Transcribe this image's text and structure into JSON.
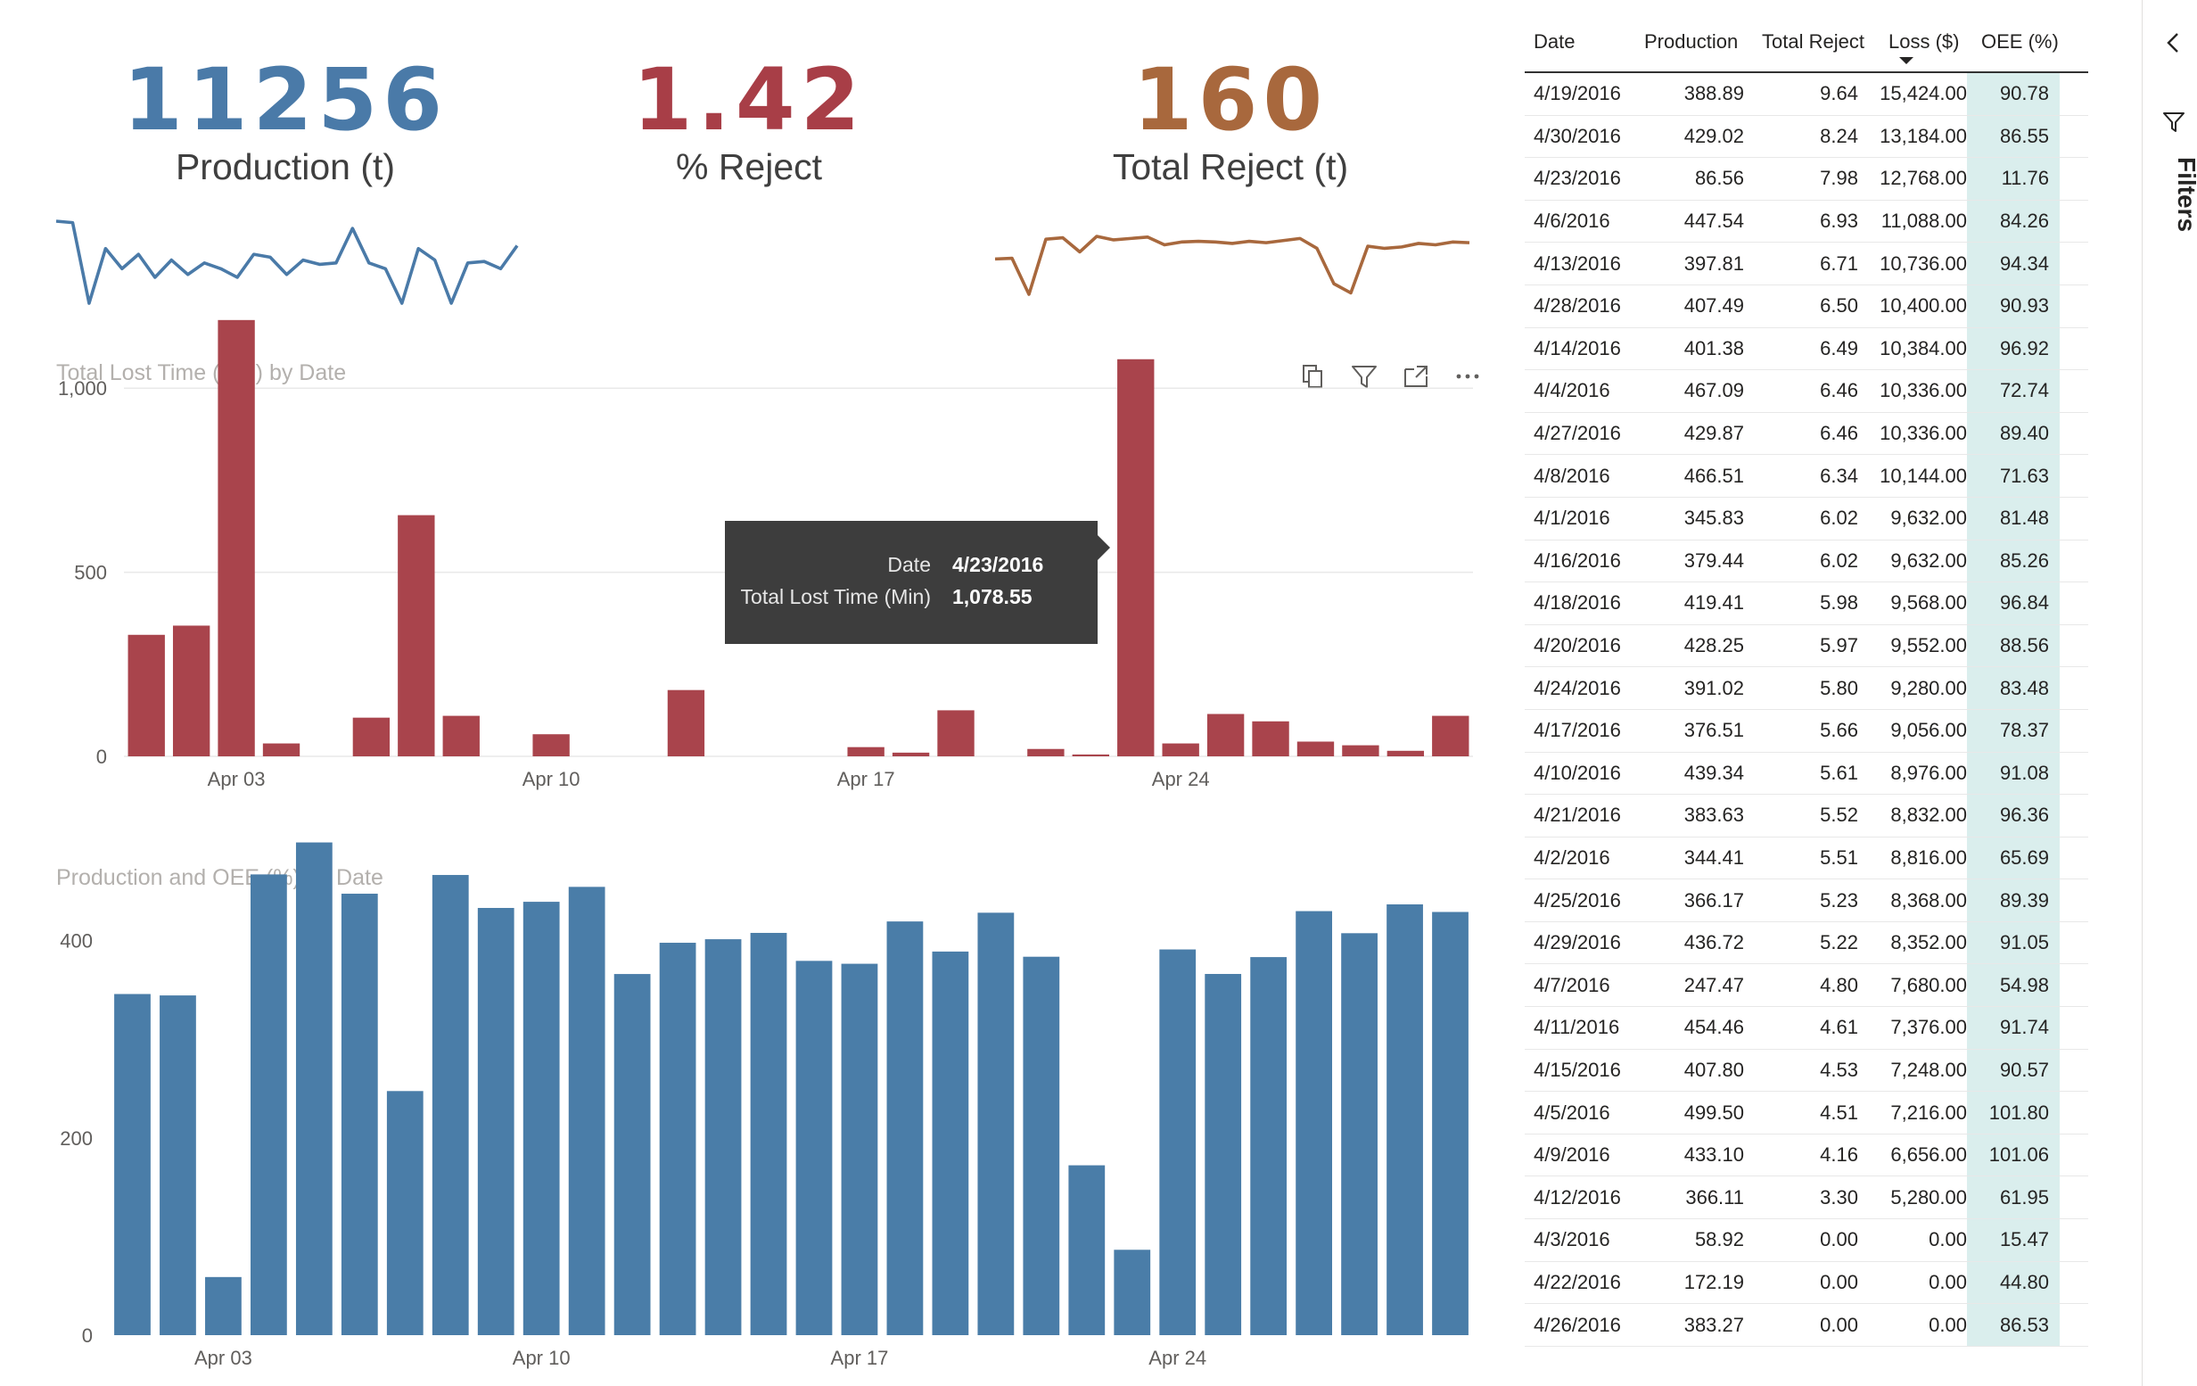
{
  "kpis": {
    "production": {
      "value": "11256",
      "label": "Production (t)"
    },
    "reject_pct": {
      "value": "1.42",
      "label": "% Reject"
    },
    "total_reject": {
      "value": "160",
      "label": "Total Reject (t)"
    }
  },
  "colors": {
    "production": "#4a7aa8",
    "reject": "#a83e47",
    "total_reject": "#a8683d",
    "lost_bar": "#a9444c",
    "prod_bar": "#4a7da8",
    "oee_cell": "#daeeed"
  },
  "visual_header_icons": [
    "copy-icon",
    "filter-icon",
    "focus-mode-icon",
    "more-options-icon"
  ],
  "tooltip": {
    "date_label": "Date",
    "date_value": "4/23/2016",
    "metric_label": "Total Lost Time (Min)",
    "metric_value": "1,078.55"
  },
  "filters_pane": {
    "label": "Filters"
  },
  "chart_data": [
    {
      "id": "production-sparkline",
      "type": "line",
      "title": "",
      "values": [
        345,
        340,
        60,
        250,
        180,
        230,
        150,
        210,
        160,
        200,
        180,
        150,
        230,
        220,
        160,
        210,
        195,
        200,
        320,
        200,
        180,
        60,
        250,
        210,
        60,
        200,
        205,
        180,
        260
      ]
    },
    {
      "id": "total-reject-sparkline",
      "type": "line",
      "title": "",
      "values": [
        5.0,
        5.1,
        0.0,
        7.8,
        8.0,
        6.0,
        8.2,
        7.7,
        7.9,
        8.1,
        7.0,
        7.4,
        7.5,
        7.4,
        7.2,
        7.5,
        7.3,
        7.6,
        7.9,
        6.5,
        1.5,
        0.2,
        6.8,
        6.5,
        6.7,
        7.2,
        7.0,
        7.4,
        7.3
      ]
    },
    {
      "id": "lost-time-chart",
      "type": "bar",
      "title": "Total Lost Time (Min) by Date",
      "categories": [
        "4/1/2016",
        "4/2/2016",
        "4/3/2016",
        "4/4/2016",
        "4/5/2016",
        "4/6/2016",
        "4/7/2016",
        "4/8/2016",
        "4/9/2016",
        "4/10/2016",
        "4/11/2016",
        "4/12/2016",
        "4/13/2016",
        "4/14/2016",
        "4/15/2016",
        "4/16/2016",
        "4/17/2016",
        "4/18/2016",
        "4/19/2016",
        "4/20/2016",
        "4/21/2016",
        "4/22/2016",
        "4/23/2016",
        "4/24/2016",
        "4/25/2016",
        "4/26/2016",
        "4/27/2016",
        "4/28/2016",
        "4/29/2016",
        "4/30/2016"
      ],
      "values": [
        330,
        355,
        1185,
        35,
        0,
        105,
        655,
        110,
        0,
        60,
        0,
        0,
        180,
        0,
        0,
        0,
        25,
        10,
        125,
        0,
        20,
        5,
        1078.55,
        35,
        115,
        95,
        40,
        30,
        15,
        110
      ],
      "x_ticks": [
        "Apr 03",
        "Apr 10",
        "Apr 17",
        "Apr 24"
      ],
      "x_tick_indices": [
        2,
        9,
        16,
        23
      ],
      "y_ticks": [
        "0",
        "500",
        "1,000"
      ],
      "y_tick_values": [
        0,
        500,
        1000
      ],
      "ylim": [
        0,
        1250
      ],
      "grid": true
    },
    {
      "id": "production-oee-chart",
      "type": "bar",
      "title": "Production and OEE (%) by Date",
      "categories": [
        "4/1/2016",
        "4/2/2016",
        "4/3/2016",
        "4/4/2016",
        "4/5/2016",
        "4/6/2016",
        "4/7/2016",
        "4/8/2016",
        "4/9/2016",
        "4/10/2016",
        "4/11/2016",
        "4/12/2016",
        "4/13/2016",
        "4/14/2016",
        "4/15/2016",
        "4/16/2016",
        "4/17/2016",
        "4/18/2016",
        "4/19/2016",
        "4/20/2016",
        "4/21/2016",
        "4/22/2016",
        "4/23/2016",
        "4/24/2016",
        "4/25/2016",
        "4/26/2016",
        "4/27/2016",
        "4/28/2016",
        "4/29/2016",
        "4/30/2016"
      ],
      "values": [
        345.83,
        344.41,
        58.92,
        467.09,
        499.5,
        447.54,
        247.47,
        466.51,
        433.1,
        439.34,
        454.46,
        366.11,
        397.81,
        401.38,
        407.8,
        379.44,
        376.51,
        419.41,
        388.89,
        428.25,
        383.63,
        172.19,
        86.56,
        391.02,
        366.17,
        383.27,
        429.87,
        407.49,
        436.72,
        429.02
      ],
      "x_ticks": [
        "Apr 03",
        "Apr 10",
        "Apr 17",
        "Apr 24"
      ],
      "x_tick_indices": [
        2,
        9,
        16,
        23
      ],
      "y_ticks": [
        "0",
        "200",
        "400"
      ],
      "y_tick_values": [
        0,
        200,
        400
      ],
      "ylim": [
        0,
        500
      ],
      "grid": false
    }
  ],
  "table": {
    "headers": {
      "date": "Date",
      "production": "Production",
      "total_reject": "Total Reject",
      "loss": "Loss ($)",
      "oee": "OEE (%)"
    },
    "rows": [
      {
        "date": "4/19/2016",
        "production": "388.89",
        "total_reject": "9.64",
        "loss": "15,424.00",
        "oee": "90.78"
      },
      {
        "date": "4/30/2016",
        "production": "429.02",
        "total_reject": "8.24",
        "loss": "13,184.00",
        "oee": "86.55"
      },
      {
        "date": "4/23/2016",
        "production": "86.56",
        "total_reject": "7.98",
        "loss": "12,768.00",
        "oee": "11.76"
      },
      {
        "date": "4/6/2016",
        "production": "447.54",
        "total_reject": "6.93",
        "loss": "11,088.00",
        "oee": "84.26"
      },
      {
        "date": "4/13/2016",
        "production": "397.81",
        "total_reject": "6.71",
        "loss": "10,736.00",
        "oee": "94.34"
      },
      {
        "date": "4/28/2016",
        "production": "407.49",
        "total_reject": "6.50",
        "loss": "10,400.00",
        "oee": "90.93"
      },
      {
        "date": "4/14/2016",
        "production": "401.38",
        "total_reject": "6.49",
        "loss": "10,384.00",
        "oee": "96.92"
      },
      {
        "date": "4/4/2016",
        "production": "467.09",
        "total_reject": "6.46",
        "loss": "10,336.00",
        "oee": "72.74"
      },
      {
        "date": "4/27/2016",
        "production": "429.87",
        "total_reject": "6.46",
        "loss": "10,336.00",
        "oee": "89.40"
      },
      {
        "date": "4/8/2016",
        "production": "466.51",
        "total_reject": "6.34",
        "loss": "10,144.00",
        "oee": "71.63"
      },
      {
        "date": "4/1/2016",
        "production": "345.83",
        "total_reject": "6.02",
        "loss": "9,632.00",
        "oee": "81.48"
      },
      {
        "date": "4/16/2016",
        "production": "379.44",
        "total_reject": "6.02",
        "loss": "9,632.00",
        "oee": "85.26"
      },
      {
        "date": "4/18/2016",
        "production": "419.41",
        "total_reject": "5.98",
        "loss": "9,568.00",
        "oee": "96.84"
      },
      {
        "date": "4/20/2016",
        "production": "428.25",
        "total_reject": "5.97",
        "loss": "9,552.00",
        "oee": "88.56"
      },
      {
        "date": "4/24/2016",
        "production": "391.02",
        "total_reject": "5.80",
        "loss": "9,280.00",
        "oee": "83.48"
      },
      {
        "date": "4/17/2016",
        "production": "376.51",
        "total_reject": "5.66",
        "loss": "9,056.00",
        "oee": "78.37"
      },
      {
        "date": "4/10/2016",
        "production": "439.34",
        "total_reject": "5.61",
        "loss": "8,976.00",
        "oee": "91.08"
      },
      {
        "date": "4/21/2016",
        "production": "383.63",
        "total_reject": "5.52",
        "loss": "8,832.00",
        "oee": "96.36"
      },
      {
        "date": "4/2/2016",
        "production": "344.41",
        "total_reject": "5.51",
        "loss": "8,816.00",
        "oee": "65.69"
      },
      {
        "date": "4/25/2016",
        "production": "366.17",
        "total_reject": "5.23",
        "loss": "8,368.00",
        "oee": "89.39"
      },
      {
        "date": "4/29/2016",
        "production": "436.72",
        "total_reject": "5.22",
        "loss": "8,352.00",
        "oee": "91.05"
      },
      {
        "date": "4/7/2016",
        "production": "247.47",
        "total_reject": "4.80",
        "loss": "7,680.00",
        "oee": "54.98"
      },
      {
        "date": "4/11/2016",
        "production": "454.46",
        "total_reject": "4.61",
        "loss": "7,376.00",
        "oee": "91.74"
      },
      {
        "date": "4/15/2016",
        "production": "407.80",
        "total_reject": "4.53",
        "loss": "7,248.00",
        "oee": "90.57"
      },
      {
        "date": "4/5/2016",
        "production": "499.50",
        "total_reject": "4.51",
        "loss": "7,216.00",
        "oee": "101.80"
      },
      {
        "date": "4/9/2016",
        "production": "433.10",
        "total_reject": "4.16",
        "loss": "6,656.00",
        "oee": "101.06"
      },
      {
        "date": "4/12/2016",
        "production": "366.11",
        "total_reject": "3.30",
        "loss": "5,280.00",
        "oee": "61.95"
      },
      {
        "date": "4/3/2016",
        "production": "58.92",
        "total_reject": "0.00",
        "loss": "0.00",
        "oee": "15.47"
      },
      {
        "date": "4/22/2016",
        "production": "172.19",
        "total_reject": "0.00",
        "loss": "0.00",
        "oee": "44.80"
      },
      {
        "date": "4/26/2016",
        "production": "383.27",
        "total_reject": "0.00",
        "loss": "0.00",
        "oee": "86.53"
      }
    ]
  }
}
